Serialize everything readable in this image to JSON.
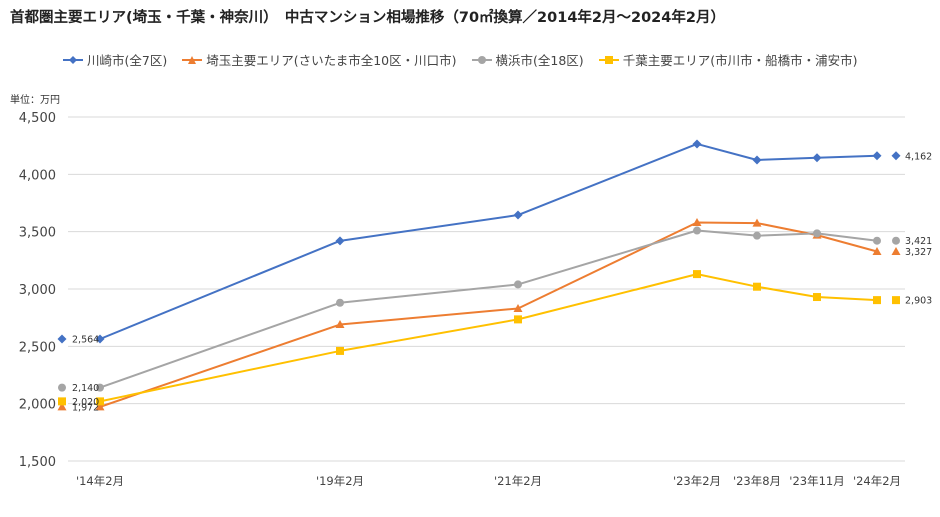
{
  "chart_data": {
    "type": "line",
    "title": "首都圏主要エリア(埼玉・千葉・神奈川）　中古マンション相場推移（70㎡換算／2014年2月〜2024年2月）",
    "unit_label": "単位：万円",
    "categories": [
      "'14年2月",
      "'19年2月",
      "'21年2月",
      "'23年2月",
      "'23年8月",
      "'23年11月",
      "'24年2月"
    ],
    "ylim": [
      1500,
      4500
    ],
    "yticks": [
      "1,500",
      "2,000",
      "2,500",
      "3,000",
      "3,500",
      "4,000",
      "4,500"
    ],
    "grid": true,
    "legend_position": "top",
    "series": [
      {
        "name": "川崎市(全7区)",
        "color": "#4472C4",
        "marker": "diamond",
        "values": [
          2564,
          3420,
          3645,
          4265,
          4125,
          4145,
          4162
        ],
        "start_label": "2,564",
        "end_label": "4,162"
      },
      {
        "name": "埼玉主要エリア(さいたま市全10区・川口市)",
        "color": "#ED7D31",
        "marker": "triangle",
        "values": [
          1972,
          2690,
          2830,
          3580,
          3575,
          3470,
          3327
        ],
        "start_label": "1,972",
        "end_label": "3,327"
      },
      {
        "name": "横浜市(全18区)",
        "color": "#A5A5A5",
        "marker": "circle",
        "values": [
          2140,
          2880,
          3040,
          3510,
          3465,
          3485,
          3421
        ],
        "start_label": "2,140",
        "end_label": "3,421"
      },
      {
        "name": "千葉主要エリア(市川市・船橋市・浦安市)",
        "color": "#FFC000",
        "marker": "square",
        "values": [
          2020,
          2460,
          2735,
          3130,
          3020,
          2930,
          2903
        ],
        "start_label": "2,020",
        "end_label": "2,903"
      }
    ]
  }
}
